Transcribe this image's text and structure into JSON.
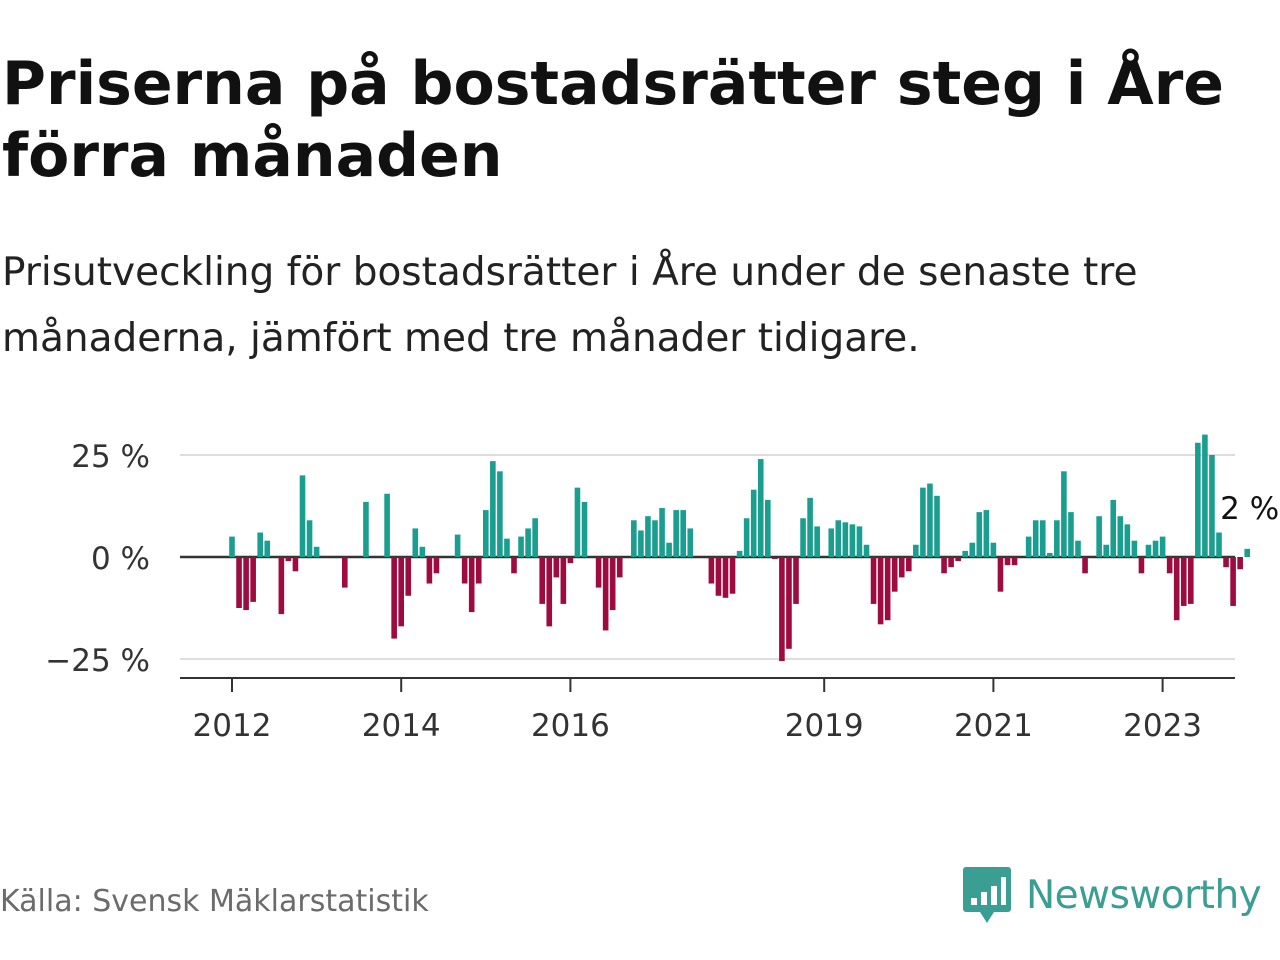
{
  "title": "Priserna på bostadsrätter steg i Åre förra månaden",
  "subtitle": "Prisutveckling för bostadsrätter i Åre under de senaste tre månaderna, jämfört med tre månader tidigare.",
  "source": "Källa: Svensk Mäklarstatistik",
  "brand": {
    "name": "Newsworthy",
    "icon": "newsworthy-logo-icon",
    "color": "#3a9e93"
  },
  "colors": {
    "positive": "#1a9e8f",
    "negative": "#9e0b3e",
    "grid": "#dddddd",
    "axis": "#333333"
  },
  "chart_data": {
    "type": "bar",
    "start": "2012-01",
    "frequency": "monthly",
    "values": [
      5,
      -12.5,
      -13,
      -11,
      6,
      4,
      0,
      -14,
      -1,
      -3.5,
      20,
      9,
      2.5,
      0,
      0,
      0,
      -7.5,
      0,
      0,
      13.5,
      0,
      0,
      15.5,
      -20,
      -17,
      -9.5,
      7,
      2.5,
      -6.5,
      -4,
      0,
      0,
      5.5,
      -6.5,
      -13.5,
      -6.5,
      11.5,
      23.5,
      21,
      4.5,
      -4,
      5,
      7,
      9.5,
      -11.5,
      -17,
      -5,
      -11.5,
      -1.5,
      17,
      13.5,
      0,
      -7.5,
      -18,
      -13,
      -5,
      0,
      9,
      6.5,
      10,
      9,
      12,
      3.5,
      11.5,
      11.5,
      7,
      0,
      0,
      -6.5,
      -9.5,
      -10,
      -9,
      1.5,
      9.5,
      16.5,
      24,
      14,
      -0.5,
      -25.5,
      -22.5,
      -11.5,
      9.5,
      14.5,
      7.5,
      0,
      7,
      9,
      8.5,
      8,
      7.5,
      3,
      -11.5,
      -16.5,
      -15.5,
      -8.5,
      -5,
      -3.5,
      3,
      17,
      18,
      15,
      -4,
      -2.5,
      -1,
      1.5,
      3.5,
      11,
      11.5,
      3.5,
      -8.5,
      -2,
      -2,
      0,
      5,
      9,
      9,
      1,
      9,
      21,
      11,
      4,
      -4,
      0,
      10,
      3,
      14,
      10,
      8,
      4,
      -4,
      3,
      4,
      5,
      -4,
      -15.5,
      -12,
      -11.5,
      28,
      30,
      25,
      6,
      -2.5,
      -12,
      -3,
      2
    ],
    "ylim": [
      -30,
      30
    ],
    "yticks": [
      -25,
      0,
      25
    ],
    "ytick_labels": [
      "−25 %",
      "0 %",
      "25 %"
    ],
    "xticks": [
      "2012",
      "2014",
      "2016",
      "2019",
      "2021",
      "2023"
    ],
    "annotation": {
      "label": "2 %",
      "target": "last"
    },
    "grid": true,
    "legend": "none"
  }
}
